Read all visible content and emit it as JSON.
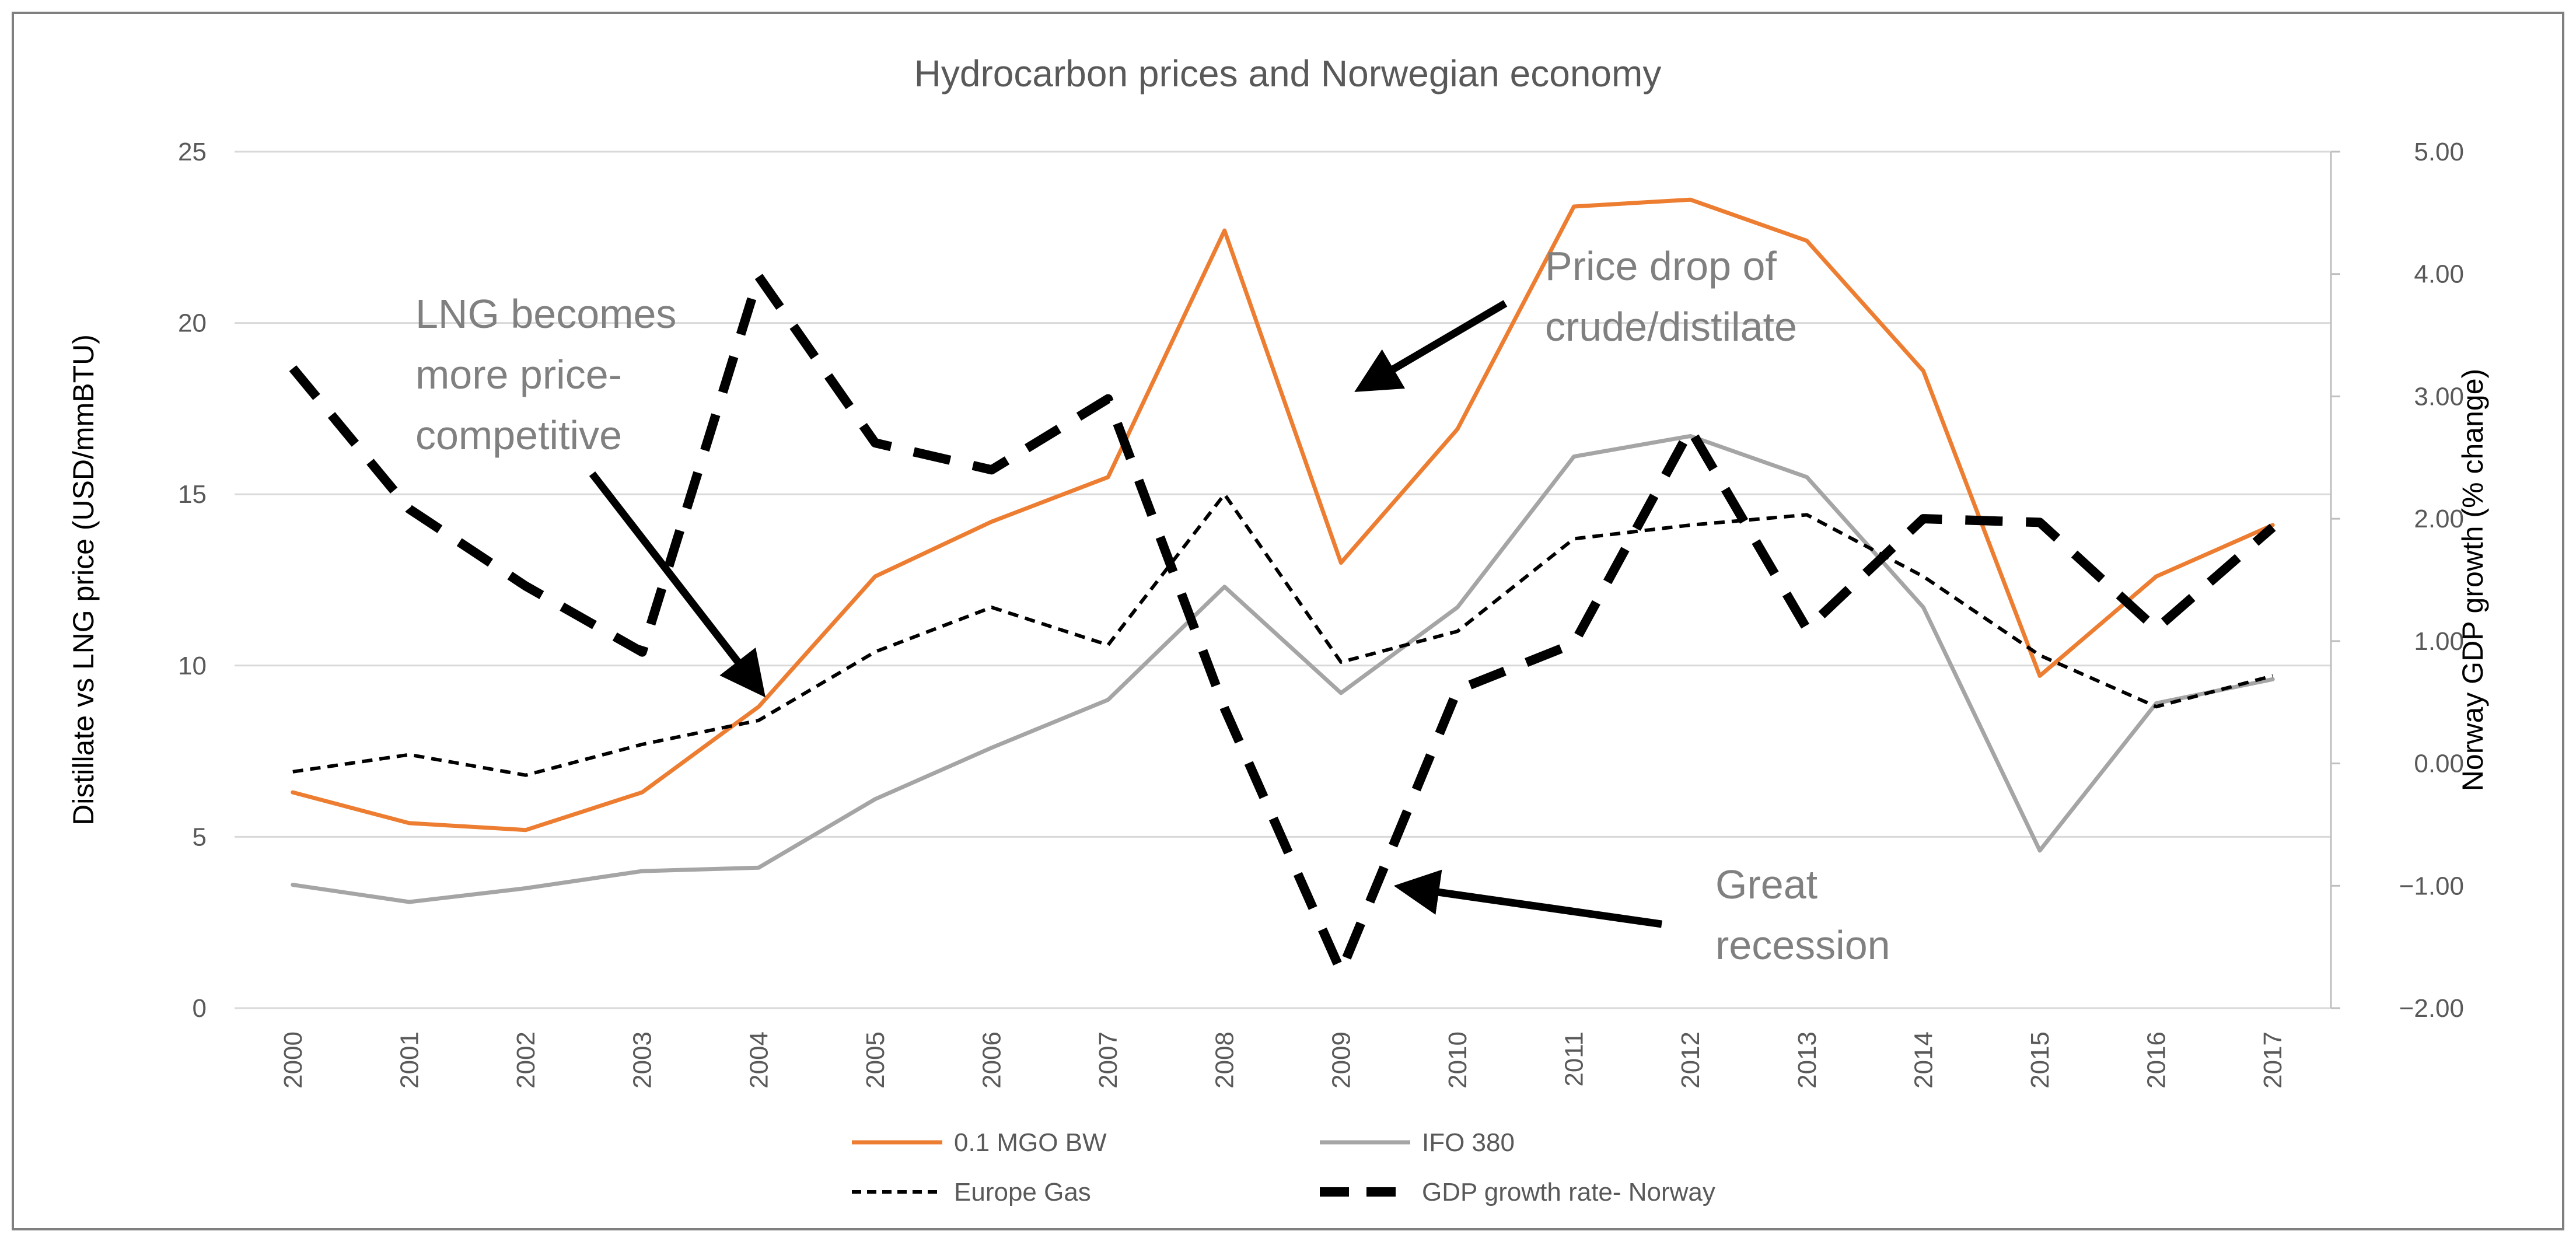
{
  "chart_data": {
    "type": "line",
    "title": "Hydrocarbon prices and Norwegian economy",
    "ylabel": "Distillate vs LNG price (USD/mmBTU)",
    "y2label": "Norway GDP growth (% change)",
    "ylim": [
      0,
      25
    ],
    "y2lim": [
      -2,
      5
    ],
    "yticks": [
      "0",
      "5",
      "10",
      "15",
      "20",
      "25"
    ],
    "y2ticks": [
      "−2.00",
      "−1.00",
      "0.00",
      "1.00",
      "2.00",
      "3.00",
      "4.00",
      "5.00"
    ],
    "categories": [
      "2000",
      "2001",
      "2002",
      "2003",
      "2004",
      "2005",
      "2006",
      "2007",
      "2008",
      "2009",
      "2010",
      "2011",
      "2012",
      "2013",
      "2014",
      "2015",
      "2016",
      "2017"
    ],
    "grid": "horizontal",
    "legend_position": "bottom",
    "series": [
      {
        "name": "0.1 MGO BW",
        "axis": "left",
        "color": "#ED7D31",
        "style": "solid",
        "values": [
          6.3,
          5.4,
          5.2,
          6.3,
          8.8,
          12.6,
          14.2,
          15.5,
          22.7,
          13.0,
          16.9,
          23.4,
          23.6,
          22.4,
          18.6,
          9.7,
          12.6,
          14.1
        ]
      },
      {
        "name": "IFO 380",
        "axis": "left",
        "color": "#A5A5A5",
        "style": "solid",
        "values": [
          3.6,
          3.1,
          3.5,
          4.0,
          4.1,
          6.1,
          7.6,
          9.0,
          12.3,
          9.2,
          11.7,
          16.1,
          16.7,
          15.5,
          11.7,
          4.6,
          8.9,
          9.6
        ]
      },
      {
        "name": "Europe Gas",
        "axis": "left",
        "color": "#000000",
        "style": "dashed",
        "values": [
          6.9,
          7.4,
          6.8,
          7.7,
          8.4,
          10.4,
          11.7,
          10.6,
          15.0,
          10.1,
          11.0,
          13.7,
          14.1,
          14.4,
          12.6,
          10.3,
          8.8,
          9.7
        ]
      },
      {
        "name": "GDP growth rate- Norway",
        "axis": "right",
        "color": "#000000",
        "style": "long-dashed",
        "values": [
          3.23,
          2.08,
          1.45,
          0.91,
          3.98,
          2.62,
          2.4,
          2.98,
          0.45,
          -1.7,
          0.6,
          0.98,
          2.73,
          1.1,
          2.0,
          1.97,
          1.1,
          1.93
        ]
      }
    ],
    "annotations": [
      {
        "lines": [
          "LNG becomes",
          "more price-",
          "competitive"
        ]
      },
      {
        "lines": [
          "Price drop of",
          "crude/distilate"
        ]
      },
      {
        "lines": [
          "Great",
          "recession"
        ]
      }
    ]
  }
}
